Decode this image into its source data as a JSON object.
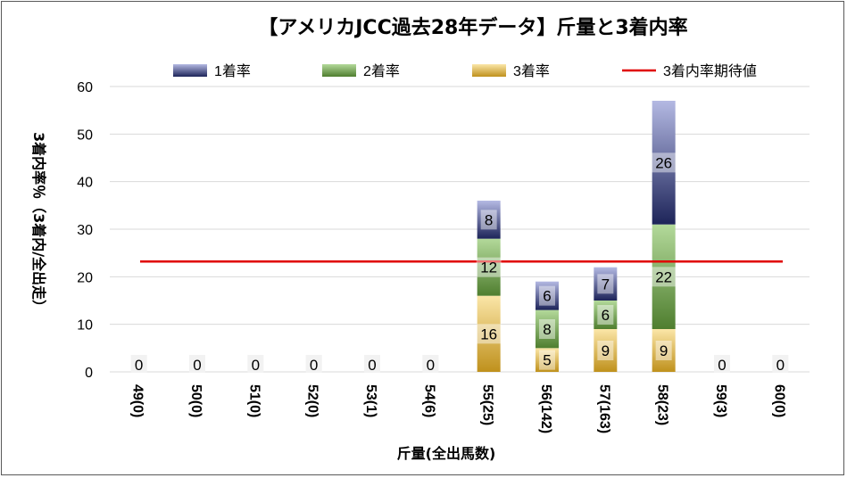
{
  "chart_data": {
    "type": "bar",
    "stacked": true,
    "title": "【アメリカJCC過去28年データ】斤量と3着内率",
    "xlabel": "斤量(全出馬数)",
    "ylabel": "3着内率％（3着内/全出走）",
    "ylim": [
      0,
      60
    ],
    "yticks": [
      0,
      10,
      20,
      30,
      40,
      50,
      60
    ],
    "grid": true,
    "legend_position": "top",
    "categories": [
      "49(0)",
      "50(0)",
      "51(0)",
      "52(0)",
      "53(1)",
      "54(6)",
      "55(25)",
      "56(142)",
      "57(163)",
      "58(23)",
      "59(3)",
      "60(0)"
    ],
    "series": [
      {
        "name": "3着率",
        "values": [
          0,
          0,
          0,
          0,
          0,
          0,
          16,
          5,
          9,
          9,
          0,
          0
        ],
        "color": "#C9A227"
      },
      {
        "name": "2着率",
        "values": [
          0,
          0,
          0,
          0,
          0,
          0,
          12,
          8,
          6,
          22,
          0,
          0
        ],
        "color": "#6A9A45"
      },
      {
        "name": "1着率",
        "values": [
          0,
          0,
          0,
          0,
          0,
          0,
          8,
          6,
          7,
          26,
          0,
          0
        ],
        "color": "#2F3C7E"
      }
    ],
    "reference_line": {
      "name": "3着内率期待値",
      "value": 23.2,
      "color": "#E00000"
    },
    "zero_labels": [
      "0",
      "0",
      "0",
      "0",
      "0",
      "0",
      "0",
      "0"
    ]
  }
}
